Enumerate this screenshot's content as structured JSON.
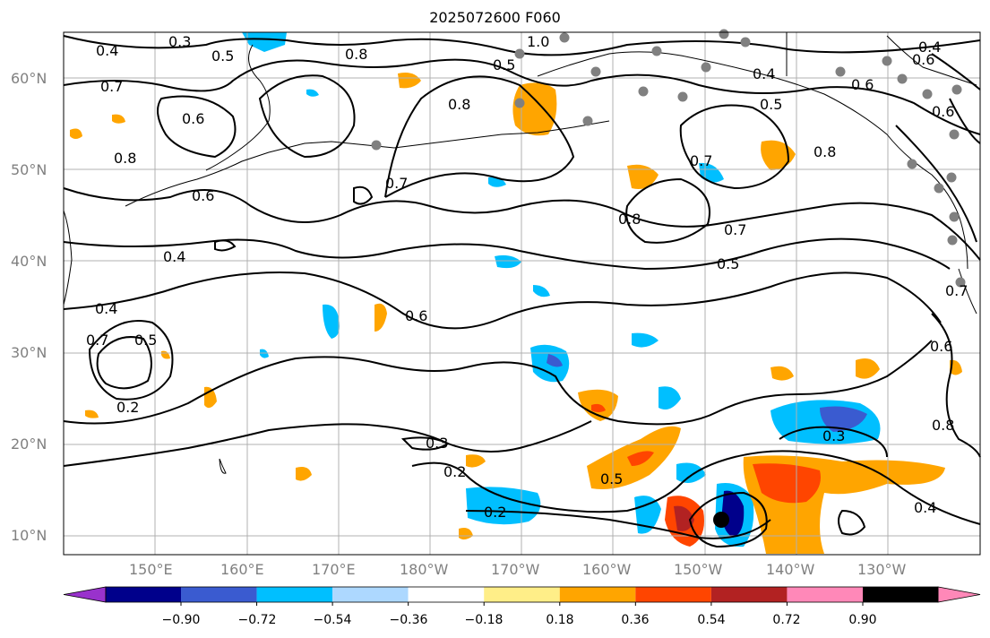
{
  "title": "2025072600 F060",
  "map": {
    "lat_labels": [
      "60°N",
      "50°N",
      "40°N",
      "30°N",
      "20°N",
      "10°N"
    ],
    "lon_labels": [
      "150°E",
      "160°E",
      "170°E",
      "180°W",
      "170°W",
      "160°W",
      "150°W",
      "140°W",
      "130°W"
    ],
    "contour_labels": [
      "0.3",
      "0.4",
      "0.5",
      "0.8",
      "1.0",
      "0.7",
      "0.6",
      "0.8",
      "0.5",
      "0.8",
      "0.4",
      "0.6",
      "0.5",
      "0.4",
      "0.6",
      "0.8",
      "0.7",
      "0.7",
      "0.6",
      "0.8",
      "0.7",
      "0.5",
      "0.6",
      "0.4",
      "0.4",
      "0.6",
      "0.7",
      "0.5",
      "0.2",
      "0.3",
      "0.2",
      "0.2",
      "0.5",
      "0.3",
      "0.4",
      "0.8",
      "0.6",
      "0.7"
    ],
    "colors": {
      "coast": "#000000",
      "grid": "#b0b0b0",
      "contour": "#000000",
      "station": "#808080",
      "center": "#000000"
    }
  },
  "colorbar": {
    "ticks": [
      "−0.90",
      "−0.72",
      "−0.54",
      "−0.36",
      "−0.18",
      "0.18",
      "0.36",
      "0.54",
      "0.72",
      "0.90"
    ],
    "colors": [
      "#9932cc",
      "#00008b",
      "#3a5bd0",
      "#00bfff",
      "#add8ff",
      "#ffffff",
      "#ffee88",
      "#ffa500",
      "#ff4500",
      "#b22222",
      "#ff88b8"
    ]
  }
}
